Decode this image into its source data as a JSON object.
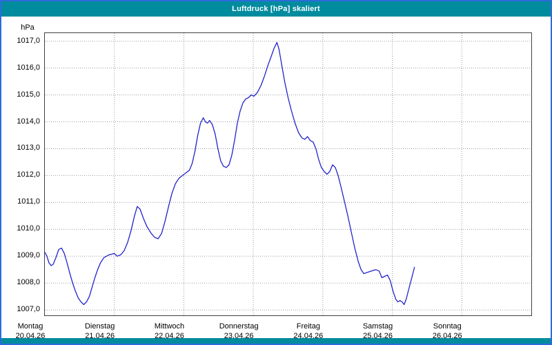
{
  "window": {
    "title": "Luftdruck [hPa] skaliert",
    "title_bar_color": "#008B9E",
    "border_color": "#2E6BDC",
    "background": "#FFFFFF"
  },
  "chart_data": {
    "type": "line",
    "title": "Luftdruck [hPa] skaliert",
    "unit_label": "hPa",
    "line_color": "#2222CC",
    "grid_color": "#9A9A9A",
    "legend": "none",
    "grid": "dotted",
    "xlim_days": [
      0,
      7
    ],
    "ylim": [
      1006.8,
      1017.3
    ],
    "y_ticks": [
      1017,
      1016,
      1015,
      1014,
      1013,
      1012,
      1011,
      1010,
      1009,
      1008,
      1007
    ],
    "y_tick_labels": [
      "1017,0",
      "1016,0",
      "1015,0",
      "1014,0",
      "1013,0",
      "1012,0",
      "1011,0",
      "1010,0",
      "1009,0",
      "1008,0",
      "1007,0"
    ],
    "x_days": [
      {
        "weekday": "Montag",
        "date": "20.04.26"
      },
      {
        "weekday": "Dienstag",
        "date": "21.04.26"
      },
      {
        "weekday": "Mittwoch",
        "date": "22.04.26"
      },
      {
        "weekday": "Donnerstag",
        "date": "23.04.26"
      },
      {
        "weekday": "Freitag",
        "date": "24.04.26"
      },
      {
        "weekday": "Samstag",
        "date": "25.04.26"
      },
      {
        "weekday": "Sonntag",
        "date": "26.04.26"
      }
    ],
    "series": [
      {
        "name": "Luftdruck",
        "points": [
          [
            0.0,
            1009.15
          ],
          [
            0.03,
            1009.0
          ],
          [
            0.06,
            1008.75
          ],
          [
            0.09,
            1008.65
          ],
          [
            0.12,
            1008.7
          ],
          [
            0.16,
            1008.95
          ],
          [
            0.2,
            1009.25
          ],
          [
            0.24,
            1009.3
          ],
          [
            0.28,
            1009.1
          ],
          [
            0.32,
            1008.75
          ],
          [
            0.36,
            1008.35
          ],
          [
            0.4,
            1008.0
          ],
          [
            0.44,
            1007.7
          ],
          [
            0.48,
            1007.45
          ],
          [
            0.52,
            1007.3
          ],
          [
            0.56,
            1007.2
          ],
          [
            0.6,
            1007.3
          ],
          [
            0.64,
            1007.5
          ],
          [
            0.68,
            1007.85
          ],
          [
            0.72,
            1008.2
          ],
          [
            0.76,
            1008.5
          ],
          [
            0.8,
            1008.75
          ],
          [
            0.85,
            1008.95
          ],
          [
            0.92,
            1009.05
          ],
          [
            1.0,
            1009.1
          ],
          [
            1.04,
            1009.0
          ],
          [
            1.09,
            1009.05
          ],
          [
            1.14,
            1009.2
          ],
          [
            1.19,
            1009.5
          ],
          [
            1.24,
            1009.95
          ],
          [
            1.29,
            1010.5
          ],
          [
            1.33,
            1010.85
          ],
          [
            1.37,
            1010.75
          ],
          [
            1.42,
            1010.4
          ],
          [
            1.47,
            1010.1
          ],
          [
            1.53,
            1009.85
          ],
          [
            1.58,
            1009.7
          ],
          [
            1.63,
            1009.65
          ],
          [
            1.68,
            1009.85
          ],
          [
            1.73,
            1010.3
          ],
          [
            1.78,
            1010.85
          ],
          [
            1.83,
            1011.35
          ],
          [
            1.88,
            1011.7
          ],
          [
            1.93,
            1011.9
          ],
          [
            1.98,
            1012.0
          ],
          [
            2.03,
            1012.1
          ],
          [
            2.08,
            1012.2
          ],
          [
            2.12,
            1012.45
          ],
          [
            2.16,
            1012.9
          ],
          [
            2.2,
            1013.5
          ],
          [
            2.24,
            1013.95
          ],
          [
            2.28,
            1014.15
          ],
          [
            2.31,
            1014.0
          ],
          [
            2.34,
            1013.95
          ],
          [
            2.37,
            1014.05
          ],
          [
            2.41,
            1013.9
          ],
          [
            2.45,
            1013.55
          ],
          [
            2.49,
            1013.0
          ],
          [
            2.53,
            1012.55
          ],
          [
            2.57,
            1012.35
          ],
          [
            2.61,
            1012.3
          ],
          [
            2.65,
            1012.4
          ],
          [
            2.69,
            1012.75
          ],
          [
            2.73,
            1013.3
          ],
          [
            2.77,
            1013.95
          ],
          [
            2.81,
            1014.4
          ],
          [
            2.85,
            1014.7
          ],
          [
            2.89,
            1014.85
          ],
          [
            2.93,
            1014.9
          ],
          [
            2.97,
            1015.0
          ],
          [
            3.01,
            1014.95
          ],
          [
            3.06,
            1015.1
          ],
          [
            3.11,
            1015.35
          ],
          [
            3.16,
            1015.7
          ],
          [
            3.21,
            1016.1
          ],
          [
            3.26,
            1016.45
          ],
          [
            3.3,
            1016.75
          ],
          [
            3.34,
            1016.95
          ],
          [
            3.37,
            1016.7
          ],
          [
            3.41,
            1016.1
          ],
          [
            3.45,
            1015.5
          ],
          [
            3.5,
            1014.9
          ],
          [
            3.55,
            1014.4
          ],
          [
            3.6,
            1013.95
          ],
          [
            3.65,
            1013.6
          ],
          [
            3.7,
            1013.4
          ],
          [
            3.74,
            1013.35
          ],
          [
            3.78,
            1013.45
          ],
          [
            3.82,
            1013.3
          ],
          [
            3.86,
            1013.25
          ],
          [
            3.9,
            1013.0
          ],
          [
            3.94,
            1012.6
          ],
          [
            3.98,
            1012.3
          ],
          [
            4.02,
            1012.15
          ],
          [
            4.06,
            1012.05
          ],
          [
            4.1,
            1012.15
          ],
          [
            4.14,
            1012.4
          ],
          [
            4.18,
            1012.3
          ],
          [
            4.22,
            1012.0
          ],
          [
            4.26,
            1011.6
          ],
          [
            4.31,
            1011.05
          ],
          [
            4.36,
            1010.5
          ],
          [
            4.41,
            1009.9
          ],
          [
            4.46,
            1009.3
          ],
          [
            4.51,
            1008.8
          ],
          [
            4.55,
            1008.5
          ],
          [
            4.59,
            1008.35
          ],
          [
            4.64,
            1008.4
          ],
          [
            4.7,
            1008.45
          ],
          [
            4.76,
            1008.5
          ],
          [
            4.81,
            1008.45
          ],
          [
            4.85,
            1008.2
          ],
          [
            4.89,
            1008.25
          ],
          [
            4.93,
            1008.3
          ],
          [
            4.97,
            1008.1
          ],
          [
            5.01,
            1007.7
          ],
          [
            5.05,
            1007.4
          ],
          [
            5.08,
            1007.3
          ],
          [
            5.11,
            1007.35
          ],
          [
            5.14,
            1007.3
          ],
          [
            5.17,
            1007.2
          ],
          [
            5.2,
            1007.4
          ],
          [
            5.24,
            1007.8
          ],
          [
            5.28,
            1008.2
          ],
          [
            5.32,
            1008.6
          ]
        ]
      }
    ]
  }
}
